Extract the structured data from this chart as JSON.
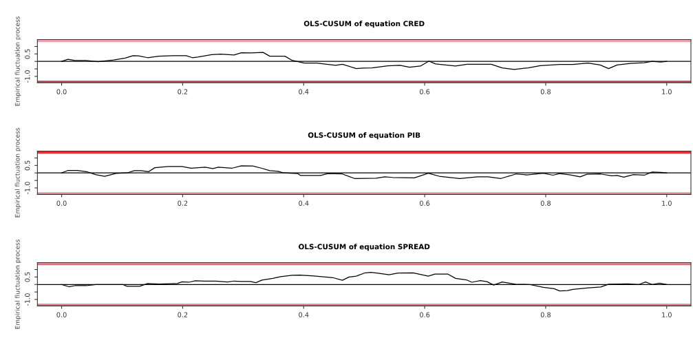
{
  "chart_data": [
    {
      "type": "line",
      "title": "OLS-CUSUM of equation CRED",
      "ylabel": "Empirical fluctuation process",
      "xlim": [
        -0.04,
        1.04
      ],
      "xticks": [
        {
          "value": 0,
          "label": "0.0"
        },
        {
          "value": 0.2,
          "label": "0.2"
        },
        {
          "value": 0.4,
          "label": "0.4"
        },
        {
          "value": 0.6,
          "label": "0.6"
        },
        {
          "value": 0.8,
          "label": "0.8"
        },
        {
          "value": 1,
          "label": "1.0"
        }
      ],
      "ylim": [
        -1.43,
        1.46
      ],
      "yticks": [
        {
          "value": -1,
          "label": "-1.0"
        },
        {
          "value": -0.5,
          "label": null
        },
        {
          "value": 0,
          "label": null
        },
        {
          "value": 0.5,
          "label": "0.5"
        },
        {
          "value": 1,
          "label": null
        }
      ],
      "ref_lines": [
        {
          "axis": "y",
          "value": 0,
          "color": "#000000"
        },
        {
          "axis": "y",
          "value": 1.36,
          "color": "#eba3ad"
        },
        {
          "axis": "y",
          "value": -1.36,
          "color": "#b5474f"
        }
      ],
      "series": [
        {
          "color": "#000000",
          "x": [
            0,
            0.0105,
            0.022,
            0.04,
            0.06,
            0.086,
            0.105,
            0.118,
            0.127,
            0.142,
            0.161,
            0.184,
            0.206,
            0.216,
            0.225,
            0.248,
            0.263,
            0.285,
            0.297,
            0.312,
            0.333,
            0.344,
            0.369,
            0.381,
            0.401,
            0.421,
            0.453,
            0.464,
            0.487,
            0.498,
            0.513,
            0.539,
            0.559,
            0.575,
            0.593,
            0.607,
            0.618,
            0.651,
            0.67,
            0.71,
            0.728,
            0.748,
            0.771,
            0.791,
            0.823,
            0.845,
            0.87,
            0.89,
            0.904,
            0.918,
            0.94,
            0.963,
            0.976,
            0.99,
            1.0
          ],
          "values": [
            0,
            0.14,
            0.06,
            0.06,
            -0.02,
            0.09,
            0.22,
            0.38,
            0.37,
            0.25,
            0.35,
            0.38,
            0.38,
            0.25,
            0.29,
            0.45,
            0.49,
            0.43,
            0.58,
            0.57,
            0.6,
            0.35,
            0.35,
            0.07,
            -0.11,
            -0.11,
            -0.26,
            -0.19,
            -0.48,
            -0.44,
            -0.43,
            -0.3,
            -0.26,
            -0.39,
            -0.31,
            0.02,
            -0.17,
            -0.31,
            -0.19,
            -0.19,
            -0.43,
            -0.54,
            -0.43,
            -0.28,
            -0.2,
            -0.2,
            -0.11,
            -0.24,
            -0.48,
            -0.24,
            -0.13,
            -0.09,
            0,
            -0.04,
            0
          ]
        }
      ]
    },
    {
      "type": "line",
      "title": "OLS-CUSUM of equation PIB",
      "ylabel": "Empirical fluctuation process",
      "xlim": [
        -0.04,
        1.04
      ],
      "xticks": [
        {
          "value": 0,
          "label": "0.0"
        },
        {
          "value": 0.2,
          "label": "0.2"
        },
        {
          "value": 0.4,
          "label": "0.4"
        },
        {
          "value": 0.6,
          "label": "0.6"
        },
        {
          "value": 0.8,
          "label": "0.8"
        },
        {
          "value": 1,
          "label": "1.0"
        }
      ],
      "ylim": [
        -1.43,
        1.46
      ],
      "yticks": [
        {
          "value": -1,
          "label": "-1.0"
        },
        {
          "value": -0.5,
          "label": null
        },
        {
          "value": 0,
          "label": null
        },
        {
          "value": 0.5,
          "label": "0.5"
        },
        {
          "value": 1,
          "label": null
        }
      ],
      "ref_lines": [
        {
          "axis": "y",
          "value": 0,
          "color": "#000000"
        },
        {
          "axis": "y",
          "value": 1.36,
          "color": "#e0343a"
        },
        {
          "axis": "y",
          "value": -1.36,
          "color": "#eb9aa4"
        }
      ],
      "series": [
        {
          "color": "#000000",
          "x": [
            0,
            0.0105,
            0.026,
            0.041,
            0.056,
            0.071,
            0.09,
            0.108,
            0.12,
            0.131,
            0.144,
            0.154,
            0.176,
            0.199,
            0.214,
            0.237,
            0.25,
            0.259,
            0.282,
            0.297,
            0.316,
            0.331,
            0.344,
            0.358,
            0.367,
            0.39,
            0.395,
            0.428,
            0.44,
            0.464,
            0.484,
            0.52,
            0.534,
            0.547,
            0.583,
            0.606,
            0.624,
            0.658,
            0.687,
            0.705,
            0.726,
            0.751,
            0.769,
            0.796,
            0.812,
            0.823,
            0.841,
            0.857,
            0.868,
            0.891,
            0.909,
            0.918,
            0.929,
            0.945,
            0.963,
            0.976,
            0.99,
            1.0
          ],
          "values": [
            0,
            0.17,
            0.17,
            0.09,
            -0.11,
            -0.23,
            -0.03,
            0,
            0.15,
            0.15,
            0.09,
            0.35,
            0.43,
            0.43,
            0.32,
            0.38,
            0.29,
            0.38,
            0.32,
            0.48,
            0.46,
            0.31,
            0.15,
            0.11,
            0,
            -0.04,
            -0.17,
            -0.17,
            -0.04,
            -0.07,
            -0.37,
            -0.35,
            -0.26,
            -0.3,
            -0.33,
            -0.02,
            -0.22,
            -0.37,
            -0.26,
            -0.26,
            -0.37,
            -0.07,
            -0.13,
            -0.02,
            -0.15,
            -0.04,
            -0.13,
            -0.26,
            -0.09,
            -0.07,
            -0.19,
            -0.17,
            -0.28,
            -0.11,
            -0.15,
            0.06,
            0.04,
            0
          ]
        }
      ]
    },
    {
      "type": "line",
      "title": "OLS-CUSUM of equation SPREAD",
      "ylabel": "Empirical fluctuation process",
      "xlim": [
        -0.04,
        1.04
      ],
      "xticks": [
        {
          "value": 0,
          "label": "0.0"
        },
        {
          "value": 0.2,
          "label": "0.2"
        },
        {
          "value": 0.4,
          "label": "0.4"
        },
        {
          "value": 0.6,
          "label": "0.6"
        },
        {
          "value": 0.8,
          "label": "0.8"
        },
        {
          "value": 1,
          "label": "1.0"
        }
      ],
      "ylim": [
        -1.43,
        1.46
      ],
      "yticks": [
        {
          "value": -1,
          "label": "-1.0"
        },
        {
          "value": -0.5,
          "label": null
        },
        {
          "value": 0,
          "label": null
        },
        {
          "value": 0.5,
          "label": "0.5"
        },
        {
          "value": 1,
          "label": null
        }
      ],
      "ref_lines": [
        {
          "axis": "y",
          "value": 0,
          "color": "#000000"
        },
        {
          "axis": "y",
          "value": 1.36,
          "color": "#e0707a"
        },
        {
          "axis": "y",
          "value": -1.36,
          "color": "#e0808a"
        }
      ],
      "series": [
        {
          "color": "#000000",
          "x": [
            0,
            0.012,
            0.022,
            0.041,
            0.056,
            0.101,
            0.108,
            0.129,
            0.142,
            0.161,
            0.191,
            0.199,
            0.21,
            0.221,
            0.237,
            0.255,
            0.274,
            0.285,
            0.297,
            0.312,
            0.321,
            0.331,
            0.349,
            0.362,
            0.381,
            0.394,
            0.417,
            0.448,
            0.464,
            0.475,
            0.487,
            0.5,
            0.511,
            0.525,
            0.541,
            0.556,
            0.581,
            0.606,
            0.617,
            0.638,
            0.651,
            0.669,
            0.678,
            0.692,
            0.703,
            0.714,
            0.728,
            0.75,
            0.773,
            0.796,
            0.814,
            0.823,
            0.836,
            0.845,
            0.868,
            0.891,
            0.904,
            0.936,
            0.954,
            0.965,
            0.976,
            0.988,
            1.0
          ],
          "values": [
            0,
            -0.15,
            -0.08,
            -0.08,
            0,
            0,
            -0.12,
            -0.12,
            0.06,
            0.03,
            0.06,
            0.18,
            0.15,
            0.25,
            0.22,
            0.23,
            0.17,
            0.23,
            0.2,
            0.2,
            0.12,
            0.29,
            0.41,
            0.52,
            0.61,
            0.63,
            0.57,
            0.46,
            0.28,
            0.5,
            0.56,
            0.76,
            0.81,
            0.74,
            0.65,
            0.76,
            0.78,
            0.56,
            0.7,
            0.7,
            0.41,
            0.31,
            0.15,
            0.26,
            0.19,
            -0.04,
            0.17,
            0.02,
            0,
            -0.19,
            -0.28,
            -0.43,
            -0.41,
            -0.33,
            -0.24,
            -0.17,
            0.02,
            0.04,
            0,
            0.17,
            0,
            0.09,
            0
          ]
        }
      ]
    }
  ]
}
